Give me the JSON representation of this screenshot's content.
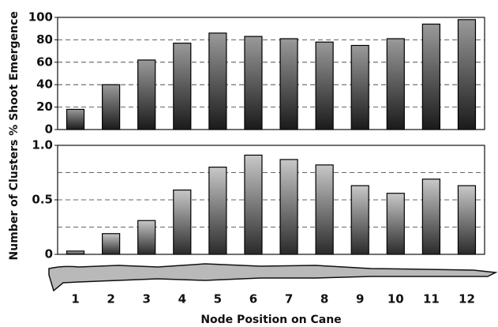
{
  "chart_data": [
    {
      "type": "bar",
      "ylabel": "% Shoot Emergence",
      "values": [
        18,
        40,
        62,
        77,
        86,
        83,
        81,
        78,
        75,
        81,
        94,
        98
      ],
      "ylim": [
        0,
        100
      ],
      "yticks": [
        0,
        20,
        40,
        60,
        80,
        100
      ],
      "grid_lines": [
        20,
        40,
        60,
        80
      ],
      "color": "#2a2a2a"
    },
    {
      "type": "bar",
      "ylabel": "Number of Clusters",
      "xlabel": "Node Position on Cane",
      "categories": [
        "1",
        "2",
        "3",
        "4",
        "5",
        "6",
        "7",
        "8",
        "9",
        "10",
        "11",
        "12"
      ],
      "values": [
        0.03,
        0.19,
        0.31,
        0.59,
        0.8,
        0.91,
        0.87,
        0.82,
        0.63,
        0.56,
        0.69,
        0.63
      ],
      "ylim": [
        0,
        1
      ],
      "yticks": [
        0,
        0.5,
        {
          "value": 1,
          "label": "1.0"
        }
      ],
      "grid_lines": [
        0.25,
        0.5,
        0.75
      ],
      "color": "#3a3a3a"
    }
  ]
}
